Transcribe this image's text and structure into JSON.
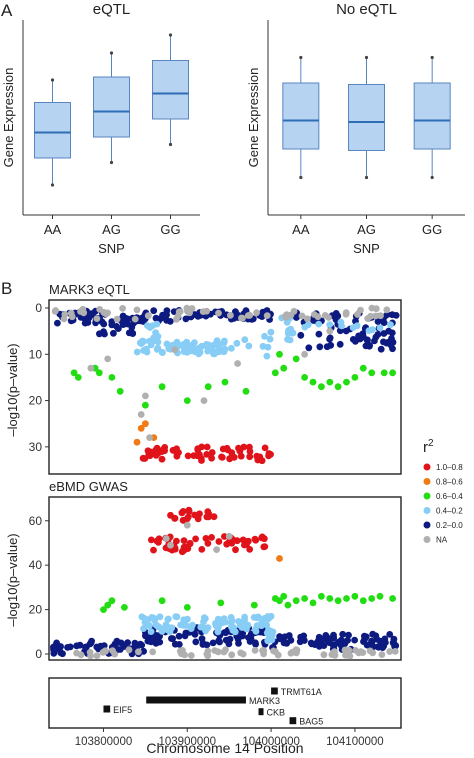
{
  "panel_labels": [
    "A",
    "B"
  ],
  "colors": {
    "box_fill": "#b7d3f2",
    "box_stroke": "#5a86c0",
    "median": "#2f6db5",
    "r2_1": "#e0131a",
    "r2_2": "#f07a15",
    "r2_3": "#22dd11",
    "r2_4": "#87cdf5",
    "r2_5": "#0d1a80",
    "na": "#b0b0b0"
  },
  "chart_data": [
    {
      "type": "box",
      "title": "eQTL",
      "xlabel": "SNP",
      "ylabel": "Gene Expression",
      "categories": [
        "AA",
        "AG",
        "GG"
      ],
      "boxes": [
        {
          "whisker_low": 0.15,
          "q1": 0.33,
          "median": 0.5,
          "q3": 0.7,
          "whisker_high": 0.85
        },
        {
          "whisker_low": 0.3,
          "q1": 0.47,
          "median": 0.64,
          "q3": 0.87,
          "whisker_high": 1.03
        },
        {
          "whisker_low": 0.42,
          "q1": 0.59,
          "median": 0.76,
          "q3": 0.98,
          "whisker_high": 1.15
        }
      ],
      "ylim": [
        -0.05,
        1.25
      ]
    },
    {
      "type": "box",
      "title": "No eQTL",
      "xlabel": "SNP",
      "ylabel": "Gene Expression",
      "categories": [
        "AA",
        "AG",
        "GG"
      ],
      "boxes": [
        {
          "whisker_low": 0.2,
          "q1": 0.39,
          "median": 0.58,
          "q3": 0.83,
          "whisker_high": 1.0
        },
        {
          "whisker_low": 0.2,
          "q1": 0.38,
          "median": 0.57,
          "q3": 0.82,
          "whisker_high": 1.0
        },
        {
          "whisker_low": 0.2,
          "q1": 0.39,
          "median": 0.58,
          "q3": 0.83,
          "whisker_high": 1.0
        }
      ],
      "ylim": [
        -0.05,
        1.25
      ]
    },
    {
      "type": "scatter",
      "title": "MARK3 eQTL",
      "ylabel": "–log10(p–value)",
      "y_reversed": true,
      "ylim": [
        0,
        35
      ],
      "yticks": [
        "0",
        "10",
        "20",
        "30"
      ],
      "xlim": [
        103735000,
        104155000
      ],
      "groups": [
        {
          "r2": "0.2–0.0",
          "segments": [
            [
              103745000,
              103795000,
              0.5,
              3.5
            ],
            [
              103795000,
              103840000,
              1,
              6
            ],
            [
              103840000,
              103880000,
              0.5,
              3
            ],
            [
              103880000,
              104000000,
              0.5,
              2.5
            ],
            [
              104030000,
              104150000,
              1,
              9
            ]
          ],
          "n": [
            30,
            30,
            18,
            45,
            70
          ]
        },
        {
          "r2": "0.4–0.2",
          "segments": [
            [
              103840000,
              103960000,
              7,
              10
            ],
            [
              103850000,
              103870000,
              3,
              7
            ],
            [
              103965000,
              104000000,
              5,
              11
            ],
            [
              104005000,
              104030000,
              2,
              7
            ],
            [
              104035000,
              104145000,
              3,
              5
            ]
          ],
          "n": [
            70,
            8,
            8,
            10,
            12
          ]
        },
        {
          "r2": "0.6–0.4",
          "points": [
            [
              103765000,
              14
            ],
            [
              103770000,
              15
            ],
            [
              103790000,
              13
            ],
            [
              103795000,
              14
            ],
            [
              103810000,
              15
            ],
            [
              103820000,
              18
            ],
            [
              103850000,
              21
            ],
            [
              103870000,
              17
            ],
            [
              103900000,
              20
            ],
            [
              103925000,
              17
            ],
            [
              103945000,
              16
            ],
            [
              103970000,
              18
            ],
            [
              104005000,
              14
            ],
            [
              104010000,
              10
            ],
            [
              104015000,
              13
            ],
            [
              104030000,
              11
            ],
            [
              104040000,
              15
            ],
            [
              104050000,
              16
            ],
            [
              104060000,
              17
            ],
            [
              104070000,
              16
            ],
            [
              104080000,
              17
            ],
            [
              104090000,
              16
            ],
            [
              104100000,
              15
            ],
            [
              104110000,
              13
            ],
            [
              104120000,
              14
            ],
            [
              104135000,
              14
            ],
            [
              104145000,
              14
            ]
          ]
        },
        {
          "r2": "0.8–0.6",
          "points": [
            [
              103840000,
              29
            ],
            [
              103845000,
              26
            ],
            [
              103850000,
              25
            ],
            [
              103860000,
              28
            ]
          ]
        },
        {
          "r2": "1.0–0.8",
          "segments": [
            [
              103845000,
              104000000,
              30,
              33
            ]
          ],
          "n": 60
        },
        {
          "r2": "NA",
          "segments": [
            [
              103740000,
              104150000,
              0,
              2.5
            ]
          ],
          "n": 60,
          "extra": [
            [
              103785000,
              13
            ],
            [
              103850000,
              19
            ],
            [
              103885000,
              9
            ],
            [
              103920000,
              20
            ],
            [
              103960000,
              12
            ],
            [
              104040000,
              10
            ],
            [
              104070000,
              5
            ],
            [
              103845000,
              23
            ],
            [
              103855000,
              28
            ],
            [
              103805000,
              11
            ]
          ]
        }
      ]
    },
    {
      "type": "scatter",
      "title": "eBMD GWAS",
      "ylabel": "–log10(p–value)",
      "ylim": [
        0,
        68
      ],
      "yticks": [
        "0",
        "20",
        "40",
        "60"
      ],
      "xlim": [
        103735000,
        104155000
      ],
      "groups": [
        {
          "r2": "0.2–0.0",
          "segments": [
            [
              103740000,
              103850000,
              0,
              6
            ],
            [
              103850000,
              104000000,
              4,
              12
            ],
            [
              104000000,
              104150000,
              2,
              9
            ]
          ],
          "n": [
            50,
            80,
            70
          ]
        },
        {
          "r2": "0.4–0.2",
          "segments": [
            [
              103845000,
              104000000,
              10,
              17
            ],
            [
              103995000,
              104005000,
              5,
              13
            ]
          ],
          "n": [
            90,
            8
          ]
        },
        {
          "r2": "0.6–0.4",
          "points": [
            [
              103800000,
              20
            ],
            [
              103805000,
              22
            ],
            [
              103810000,
              24
            ],
            [
              103825000,
              21
            ],
            [
              103870000,
              24
            ],
            [
              103900000,
              21
            ],
            [
              103940000,
              23
            ],
            [
              103980000,
              22
            ],
            [
              104005000,
              25
            ],
            [
              104010000,
              24
            ],
            [
              104015000,
              26
            ],
            [
              104020000,
              22
            ],
            [
              104030000,
              24
            ],
            [
              104040000,
              25
            ],
            [
              104050000,
              23
            ],
            [
              104060000,
              26
            ],
            [
              104070000,
              25
            ],
            [
              104080000,
              24
            ],
            [
              104090000,
              25
            ],
            [
              104100000,
              26
            ],
            [
              104110000,
              24
            ],
            [
              104120000,
              25
            ],
            [
              104130000,
              26
            ],
            [
              104145000,
              25
            ]
          ]
        },
        {
          "r2": "0.8–0.6",
          "points": [
            [
              104010000,
              43
            ]
          ]
        },
        {
          "r2": "1.0–0.8",
          "segments": [
            [
              103855000,
              103995000,
              46,
              53
            ],
            [
              103880000,
              103935000,
              60,
              65
            ]
          ],
          "n": [
            55,
            20
          ]
        },
        {
          "r2": "NA",
          "segments": [
            [
              103740000,
              104150000,
              -1,
              2
            ]
          ],
          "n": 60,
          "extra": [
            [
              103880000,
              49
            ],
            [
              103900000,
              58
            ],
            [
              103935000,
              47
            ],
            [
              103875000,
              52
            ],
            [
              103950000,
              53
            ]
          ]
        }
      ]
    },
    {
      "type": "gene_track",
      "xlabel": "Chromosome 14 Position",
      "xticks": [
        103800000,
        103900000,
        104000000,
        104100000
      ],
      "xtick_labels": [
        "103800000",
        "103900000",
        "104000000",
        "104100000"
      ],
      "genes": [
        {
          "name": "EIF5",
          "start": 103800000,
          "end": 103808000,
          "row": 1,
          "label_side": "right"
        },
        {
          "name": "MARK3",
          "start": 103851000,
          "end": 103970000,
          "row": 0,
          "label_side": "right"
        },
        {
          "name": "TRMT61A",
          "start": 104000000,
          "end": 104008000,
          "row": -1,
          "label_side": "right"
        },
        {
          "name": "CKB",
          "start": 103985000,
          "end": 103988000,
          "row": 1.3,
          "label_side": "right"
        },
        {
          "name": "BAG5",
          "start": 104022000,
          "end": 104030000,
          "row": 2.3,
          "label_side": "right"
        }
      ]
    }
  ],
  "legend": {
    "title": "r",
    "title_sup": "2",
    "items": [
      {
        "label": "1.0–0.8",
        "color_key": "r2_1"
      },
      {
        "label": "0.8–0.6",
        "color_key": "r2_2"
      },
      {
        "label": "0.6–0.4",
        "color_key": "r2_3"
      },
      {
        "label": "0.4–0.2",
        "color_key": "r2_4"
      },
      {
        "label": "0.2–0.0",
        "color_key": "r2_5"
      },
      {
        "label": "NA",
        "color_key": "na"
      }
    ]
  }
}
